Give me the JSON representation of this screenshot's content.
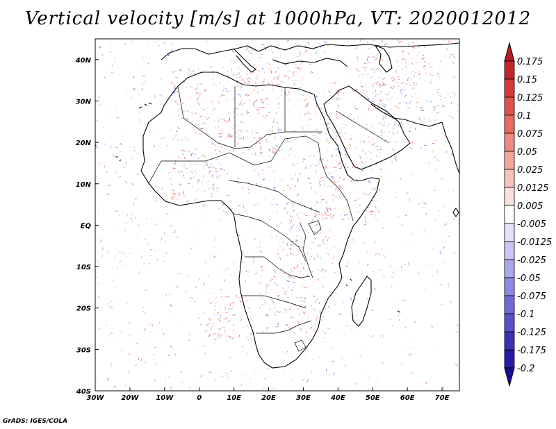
{
  "title": "Vertical velocity [m/s] at 1000hPa, VT: 2020012012",
  "credit": "GrADS: IGES/COLA",
  "map": {
    "projection": "latlon",
    "lon_range": [
      -30,
      75
    ],
    "lat_range": [
      -40,
      45
    ],
    "x_ticks": [
      "30W",
      "20W",
      "10W",
      "0",
      "10E",
      "20E",
      "30E",
      "40E",
      "50E",
      "60E",
      "70E"
    ],
    "y_ticks": [
      "40N",
      "30N",
      "20N",
      "10N",
      "EQ",
      "10S",
      "20S",
      "30S",
      "40S"
    ],
    "y_tick_lats": [
      40,
      30,
      20,
      10,
      0,
      -10,
      -20,
      -30,
      -40
    ],
    "x_tick_lons": [
      -30,
      -20,
      -10,
      0,
      10,
      20,
      30,
      40,
      50,
      60,
      70
    ]
  },
  "colorbar": {
    "labels": [
      "0.175",
      "0.15",
      "0.125",
      "0.1",
      "0.075",
      "0.05",
      "0.025",
      "0.0125",
      "0.005",
      "-0.005",
      "-0.0125",
      "-0.025",
      "-0.05",
      "-0.075",
      "-0.1",
      "-0.125",
      "-0.175",
      "-0.2"
    ],
    "top_color": "#b41e1e",
    "bottom_color": "#1c0c9a",
    "colors": [
      "#c0262a",
      "#d63a36",
      "#e0514b",
      "#e96a60",
      "#ef8a80",
      "#f3a69d",
      "#f7c3bb",
      "#fbe0db",
      "#ffffff",
      "#e2e2fa",
      "#c9c6f5",
      "#aba7ee",
      "#8f89e5",
      "#716ad9",
      "#5850cc",
      "#3c32b8",
      "#2a1aa8"
    ]
  },
  "field_colors": {
    "positive": "#e8645e",
    "negative": "#6a66e0",
    "coast": "#000000"
  }
}
